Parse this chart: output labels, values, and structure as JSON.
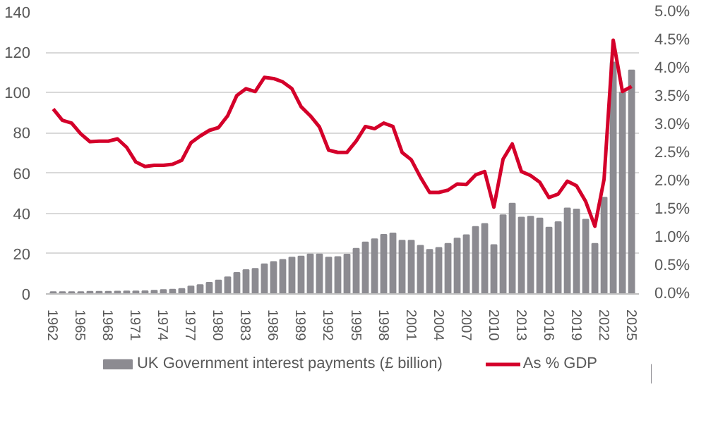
{
  "chart_data": {
    "type": "bar",
    "categories": [
      "1962",
      null,
      null,
      "1965",
      null,
      null,
      "1968",
      null,
      null,
      "1971",
      null,
      null,
      "1974",
      null,
      null,
      "1977",
      null,
      null,
      "1980",
      null,
      null,
      "1983",
      null,
      null,
      "1986",
      null,
      null,
      "1989",
      null,
      null,
      "1992",
      null,
      null,
      "1995",
      null,
      null,
      "1998",
      null,
      null,
      "2001",
      null,
      null,
      "2004",
      null,
      null,
      "2007",
      null,
      null,
      "2010",
      null,
      null,
      "2013",
      null,
      null,
      "2016",
      null,
      null,
      "2019",
      null,
      null,
      "2022",
      null,
      null,
      "2025"
    ],
    "series": [
      {
        "name": "UK Government interest payments (£ billion)",
        "color": "#8c8b91",
        "values": [
          1.0,
          1.0,
          1.0,
          1.0,
          1.1,
          1.1,
          1.1,
          1.2,
          1.3,
          1.3,
          1.4,
          1.7,
          2.0,
          2.2,
          2.5,
          3.8,
          4.5,
          5.6,
          6.7,
          8.3,
          10.5,
          11.9,
          12.5,
          14.8,
          15.9,
          17.0,
          18.1,
          18.6,
          19.7,
          19.7,
          18.1,
          18.4,
          19.6,
          22.5,
          25.6,
          27.2,
          29.4,
          30.1,
          26.5,
          26.5,
          24.0,
          22.0,
          22.9,
          24.9,
          27.6,
          29.2,
          33.3,
          34.8,
          24.3,
          39.1,
          44.9,
          38.0,
          38.4,
          37.5,
          33.0,
          35.7,
          42.5,
          42.0,
          36.9,
          24.9,
          47.9,
          115,
          100,
          111
        ]
      },
      {
        "name": "As % GDP",
        "type": "line",
        "axis": "y2",
        "color": "#d4002a",
        "values": [
          3.28,
          3.08,
          3.03,
          2.84,
          2.7,
          2.71,
          2.71,
          2.75,
          2.6,
          2.34,
          2.26,
          2.28,
          2.28,
          2.3,
          2.37,
          2.68,
          2.8,
          2.9,
          2.95,
          3.16,
          3.52,
          3.64,
          3.59,
          3.84,
          3.82,
          3.76,
          3.64,
          3.32,
          3.16,
          2.96,
          2.55,
          2.51,
          2.51,
          2.71,
          2.97,
          2.93,
          3.03,
          2.97,
          2.51,
          2.38,
          2.07,
          1.8,
          1.8,
          1.84,
          1.95,
          1.94,
          2.11,
          2.17,
          1.54,
          2.39,
          2.66,
          2.17,
          2.1,
          1.98,
          1.71,
          1.77,
          2.0,
          1.92,
          1.64,
          1.2,
          2.03,
          4.5,
          3.59,
          3.68
        ]
      }
    ],
    "ylim": [
      0,
      140
    ],
    "yticks": [
      0,
      20,
      40,
      60,
      80,
      100,
      120,
      140
    ],
    "y2lim": [
      0,
      5
    ],
    "y2ticks": [
      {
        "value": 0,
        "label": "0.0%"
      },
      {
        "value": 0.5,
        "label": "0.5%"
      },
      {
        "value": 1,
        "label": "1.0%"
      },
      {
        "value": 1.5,
        "label": "1.5%"
      },
      {
        "value": 2,
        "label": "2.0%"
      },
      {
        "value": 2.5,
        "label": "2.5%"
      },
      {
        "value": 3,
        "label": "3.0%"
      },
      {
        "value": 3.5,
        "label": "3.5%"
      },
      {
        "value": 4,
        "label": "4.0%"
      },
      {
        "value": 4.5,
        "label": "4.5%"
      },
      {
        "value": 5,
        "label": "5.0%"
      }
    ],
    "grid": "y",
    "legend": "bottom"
  }
}
